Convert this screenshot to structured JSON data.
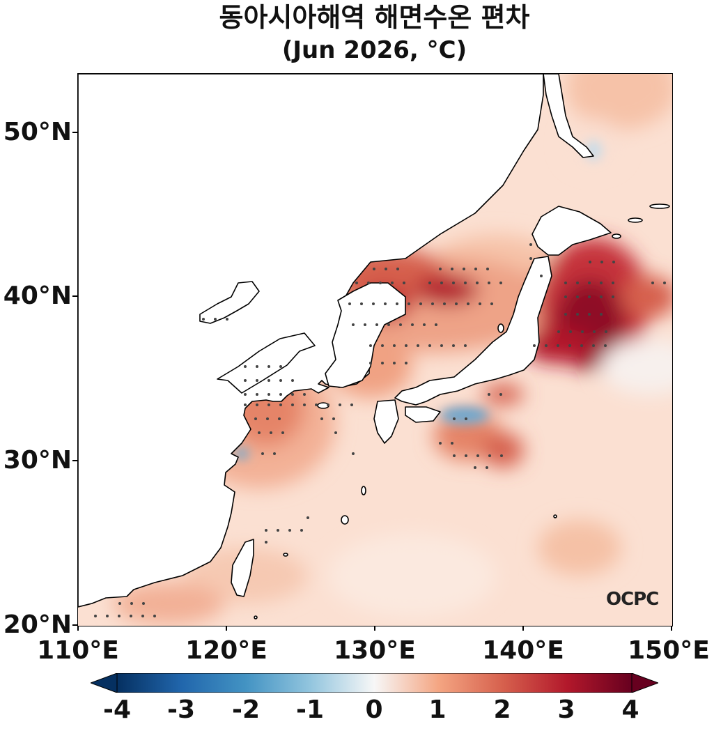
{
  "title": "동아시아해역 해면수온 편차",
  "subtitle": "(Jun 2026, °C)",
  "watermark": "OCPC",
  "lat_labels": [
    "50°N",
    "40°N",
    "30°N",
    "20°N"
  ],
  "lon_labels": [
    "110°E",
    "120°E",
    "130°E",
    "140°E",
    "150°E"
  ],
  "colorbar": {
    "ticks": [
      "-4",
      "-3",
      "-2",
      "-1",
      "0",
      "1",
      "2",
      "3",
      "4"
    ],
    "min": -4,
    "max": 4,
    "colormap": "RdBu_r",
    "extend": "both"
  },
  "colors": {
    "cold": "#053061",
    "neutral": "#f7f7f7",
    "warm": "#67001f",
    "land": "#ffffff",
    "coastline": "#000000"
  }
}
